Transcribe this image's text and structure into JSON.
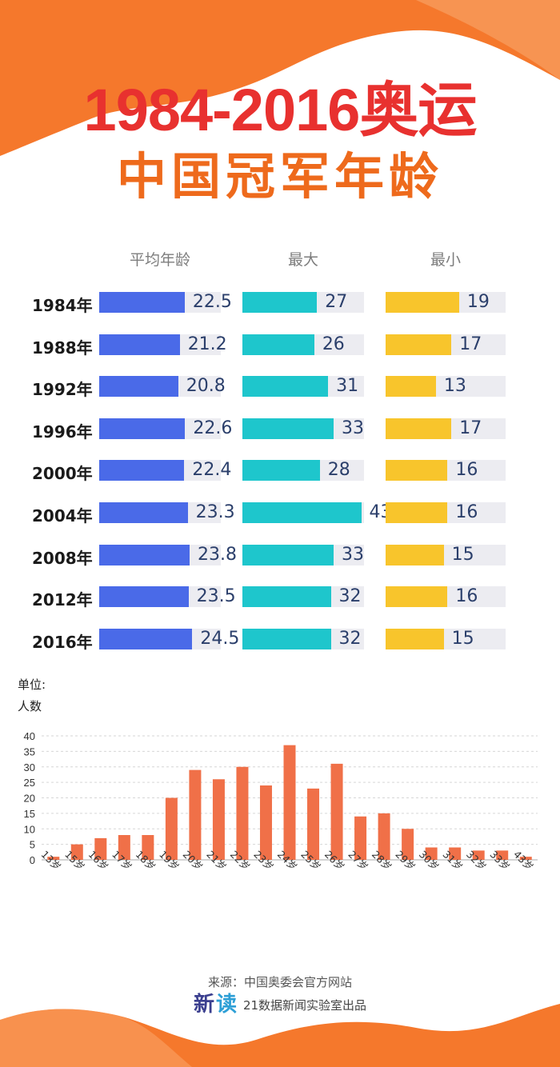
{
  "header": {
    "title_line1": "1984-2016奥运",
    "title_line2": "中国冠军年龄"
  },
  "colors": {
    "avg": "#4a6ae8",
    "max": "#1ec6cc",
    "min": "#f8c52c",
    "track": "#ececf1",
    "dist_bar": "#f07048",
    "title_red": "#e8312f",
    "title_orange": "#ee6a1c",
    "wave_orange": "#f5782c"
  },
  "age_table": {
    "columns": [
      "平均年龄",
      "最大",
      "最小"
    ],
    "rows": [
      {
        "year": "1984年",
        "avg": 22.5,
        "avg_text": "22.5",
        "max": 27,
        "max_text": "27",
        "min": 19,
        "min_text": "19"
      },
      {
        "year": "1988年",
        "avg": 21.2,
        "avg_text": "21.2",
        "max": 26,
        "max_text": "26",
        "min": 17,
        "min_text": "17"
      },
      {
        "year": "1992年",
        "avg": 20.8,
        "avg_text": "20.8",
        "max": 31,
        "max_text": "31",
        "min": 13,
        "min_text": "13"
      },
      {
        "year": "1996年",
        "avg": 22.6,
        "avg_text": "22.6",
        "max": 33,
        "max_text": "33",
        "min": 17,
        "min_text": "17"
      },
      {
        "year": "2000年",
        "avg": 22.4,
        "avg_text": "22.4",
        "max": 28,
        "max_text": "28",
        "min": 16,
        "min_text": "16"
      },
      {
        "year": "2004年",
        "avg": 23.3,
        "avg_text": "23.3",
        "max": 43,
        "max_text": "43",
        "min": 16,
        "min_text": "16"
      },
      {
        "year": "2008年",
        "avg": 23.8,
        "avg_text": "23.8",
        "max": 33,
        "max_text": "33",
        "min": 15,
        "min_text": "15"
      },
      {
        "year": "2012年",
        "avg": 23.5,
        "avg_text": "23.5",
        "max": 32,
        "max_text": "32",
        "min": 16,
        "min_text": "16"
      },
      {
        "year": "2016年",
        "avg": 24.5,
        "avg_text": "24.5",
        "max": 32,
        "max_text": "32",
        "min": 15,
        "min_text": "15"
      }
    ]
  },
  "chart_data": [
    {
      "type": "bar",
      "orientation": "horizontal",
      "categories": [
        "1984年",
        "1988年",
        "1992年",
        "1996年",
        "2000年",
        "2004年",
        "2008年",
        "2012年",
        "2016年"
      ],
      "series": [
        {
          "name": "平均年龄",
          "values": [
            22.5,
            21.2,
            20.8,
            22.6,
            22.4,
            23.3,
            23.8,
            23.5,
            24.5
          ]
        },
        {
          "name": "最大",
          "values": [
            27,
            26,
            31,
            33,
            28,
            43,
            33,
            32,
            32
          ]
        },
        {
          "name": "最小",
          "values": [
            19,
            17,
            13,
            17,
            16,
            16,
            15,
            16,
            15
          ]
        }
      ]
    },
    {
      "type": "bar",
      "unit_label_line1": "单位:",
      "unit_label_line2": "人数",
      "categories": [
        "13岁",
        "15岁",
        "16岁",
        "17岁",
        "18岁",
        "19岁",
        "20岁",
        "21岁",
        "22岁",
        "23岁",
        "24岁",
        "25岁",
        "26岁",
        "27岁",
        "28岁",
        "29岁",
        "30岁",
        "31岁",
        "32岁",
        "33岁",
        "43岁"
      ],
      "values": [
        1,
        5,
        7,
        8,
        8,
        20,
        29,
        26,
        30,
        24,
        37,
        23,
        31,
        14,
        15,
        10,
        4,
        4,
        3,
        3,
        1
      ],
      "ylim": [
        0,
        40
      ],
      "yticks": [
        0,
        5,
        10,
        15,
        20,
        25,
        30,
        35,
        40
      ],
      "grid": true
    }
  ],
  "footer": {
    "source": "来源：中国奥委会官方网站",
    "logo_char1": "新",
    "logo_char2": "读",
    "brand_text": "21数据新闻实验室出品"
  }
}
